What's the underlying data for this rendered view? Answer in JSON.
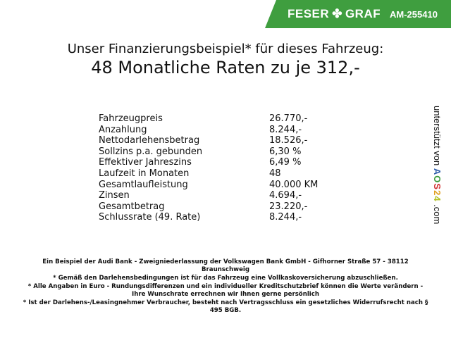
{
  "header": {
    "brand_left": "FESER",
    "brand_right": "GRAF",
    "listing_id": "AM-255410",
    "brand_color": "#3f9e3f",
    "logo_icon": "clover-icon"
  },
  "title": {
    "line1": "Unser Finanzierungsbeispiel* für dieses Fahrzeug:",
    "line2": "48 Monatliche Raten zu je 312,-"
  },
  "finance_table": [
    {
      "label": "Fahrzeugpreis",
      "value": "26.770,-"
    },
    {
      "label": "Anzahlung",
      "value": "8.244,-"
    },
    {
      "label": "Nettodarlehensbetrag",
      "value": "18.526,-"
    },
    {
      "label": "Sollzins p.a. gebunden",
      "value": "6,30 %"
    },
    {
      "label": "Effektiver Jahreszins",
      "value": "6,49 %"
    },
    {
      "label": "Laufzeit in Monaten",
      "value": "48"
    },
    {
      "label": "Gesamtlaufleistung",
      "value": "40.000 KM"
    },
    {
      "label": "Zinsen",
      "value": "4.694,-"
    },
    {
      "label": "Gesamtbetrag",
      "value": "23.220,-"
    },
    {
      "label": "Schlussrate (49. Rate)",
      "value": "8.244,-"
    }
  ],
  "side": {
    "prefix": "unterstützt von",
    "logo": "AOS24",
    "suffix": ".com"
  },
  "footer": [
    "Ein Beispiel der Audi Bank - Zweigniederlassung der Volkswagen Bank GmbH - Gifhorner Straße 57 - 38112 Braunschweig",
    "* Gemäß den Darlehensbedingungen ist für das Fahrzeug eine Vollkaskoversicherung abzuschließen.",
    "* Alle Angaben in Euro - Rundungsdifferenzen und ein individueller Kreditschutzbrief können die Werte verändern - Ihre Wunschrate errechnen wir Ihnen gerne persönlich",
    "* Ist der Darlehens-/Leasingnehmer Verbraucher, besteht nach Vertragsschluss ein gesetzliches Widerrufsrecht nach § 495 BGB."
  ]
}
